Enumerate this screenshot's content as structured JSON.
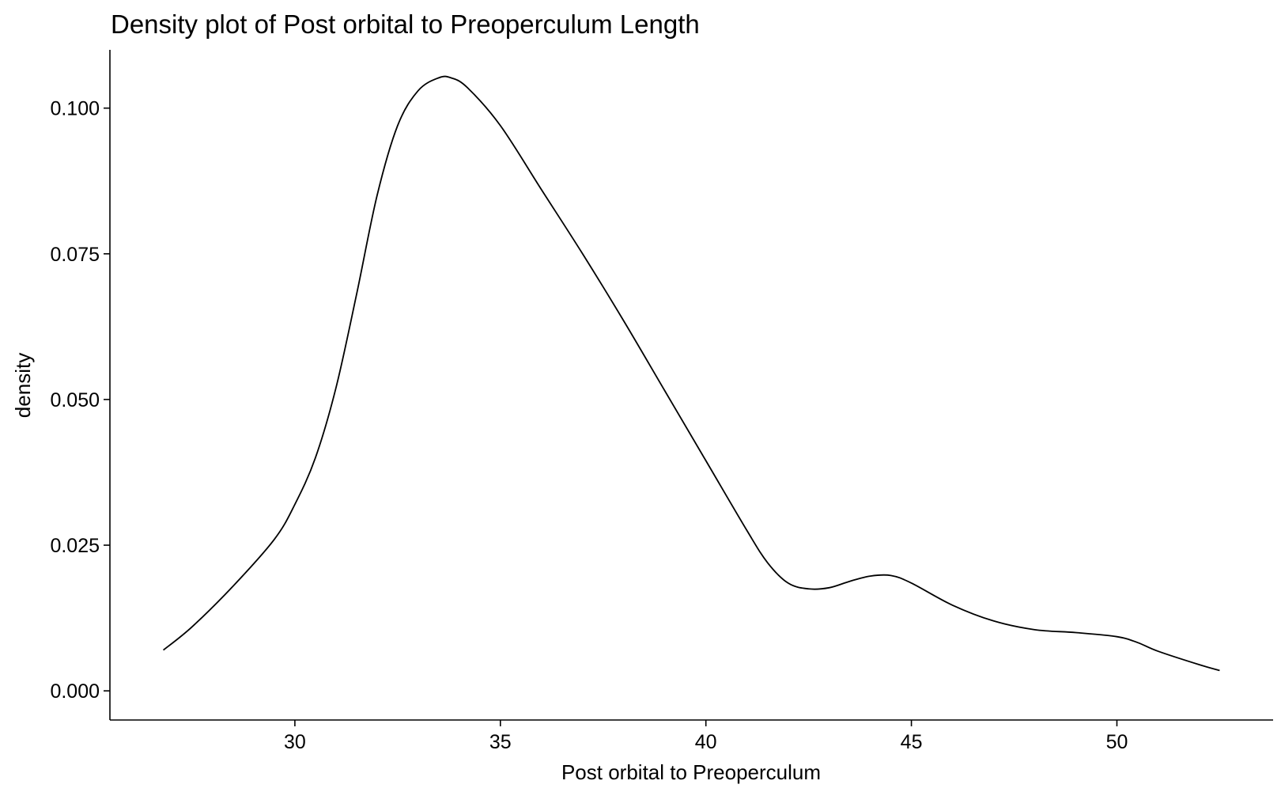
{
  "chart_data": {
    "type": "line",
    "title": "Density plot of Post orbital to Preoperculum Length",
    "xlabel": "Post orbital to Preoperculum",
    "ylabel": "density",
    "xlim": [
      25.5,
      53.8
    ],
    "ylim": [
      -0.005,
      0.11
    ],
    "x_ticks": [
      30,
      35,
      40,
      45,
      50
    ],
    "x_tick_labels": [
      "30",
      "35",
      "40",
      "45",
      "50"
    ],
    "y_ticks": [
      0.0,
      0.025,
      0.05,
      0.075,
      0.1
    ],
    "y_tick_labels": [
      "0.000",
      "0.025",
      "0.050",
      "0.075",
      "0.100"
    ],
    "grid": false,
    "legend": "none",
    "line_color": "#000000",
    "series": [
      {
        "x": [
          26.8,
          27.5,
          28.5,
          29.5,
          30.0,
          30.5,
          31.0,
          31.5,
          32.0,
          32.5,
          33.0,
          33.5,
          33.8,
          34.2,
          35.0,
          36.0,
          37.0,
          38.0,
          39.0,
          40.0,
          41.0,
          41.5,
          42.0,
          42.5,
          43.0,
          43.5,
          44.0,
          44.5,
          45.0,
          46.0,
          47.0,
          48.0,
          49.0,
          50.0,
          50.5,
          51.0,
          52.0,
          52.5
        ],
        "y": [
          0.007,
          0.011,
          0.018,
          0.026,
          0.032,
          0.04,
          0.052,
          0.068,
          0.085,
          0.097,
          0.103,
          0.1052,
          0.1052,
          0.1035,
          0.097,
          0.086,
          0.075,
          0.0635,
          0.0515,
          0.0395,
          0.0275,
          0.022,
          0.0185,
          0.0175,
          0.0177,
          0.0188,
          0.0197,
          0.0198,
          0.0185,
          0.0147,
          0.012,
          0.0105,
          0.01,
          0.0093,
          0.0083,
          0.0068,
          0.0045,
          0.0035
        ]
      }
    ]
  }
}
